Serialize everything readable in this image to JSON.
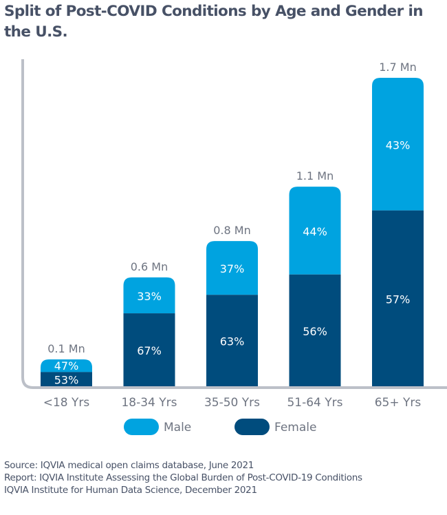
{
  "chart_data": {
    "type": "bar",
    "stacked": true,
    "title": "Split of Post-COVID Conditions by Age and Gender in the U.S.",
    "xlabel": "",
    "ylabel": "",
    "categories": [
      "<18 Yrs",
      "18-34 Yrs",
      "35-50 Yrs",
      "51-64 Yrs",
      "65+ Yrs"
    ],
    "totals": [
      0.1,
      0.6,
      0.8,
      1.1,
      1.7
    ],
    "total_labels": [
      "0.1 Mn",
      "0.6 Mn",
      "0.8 Mn",
      "1.1 Mn",
      "1.7 Mn"
    ],
    "unit": "Mn",
    "series": [
      {
        "name": "Female",
        "color": "#004c7d",
        "values": [
          53,
          67,
          63,
          56,
          57
        ],
        "labels": [
          "53%",
          "67%",
          "63%",
          "56%",
          "57%"
        ]
      },
      {
        "name": "Male",
        "color": "#00a3e0",
        "values": [
          47,
          33,
          37,
          44,
          43
        ],
        "labels": [
          "47%",
          "33%",
          "37%",
          "44%",
          "43%"
        ]
      }
    ],
    "legend": {
      "position": "bottom",
      "entries": [
        "Male",
        "Female"
      ]
    },
    "grid": false
  },
  "legend": {
    "male": "Male",
    "female": "Female"
  },
  "colors": {
    "male": "#00a3e0",
    "female": "#004c7d",
    "axis": "#bcc0c8",
    "text": "#475166",
    "label": "#6e7481"
  },
  "source": {
    "line1": "Source: IQVIA medical open claims database, June 2021",
    "line2": "Report: IQVIA Institute Assessing the Global Burden of Post-COVID-19 Conditions",
    "line3": "IQVIA Institute for Human Data Science, December 2021"
  }
}
